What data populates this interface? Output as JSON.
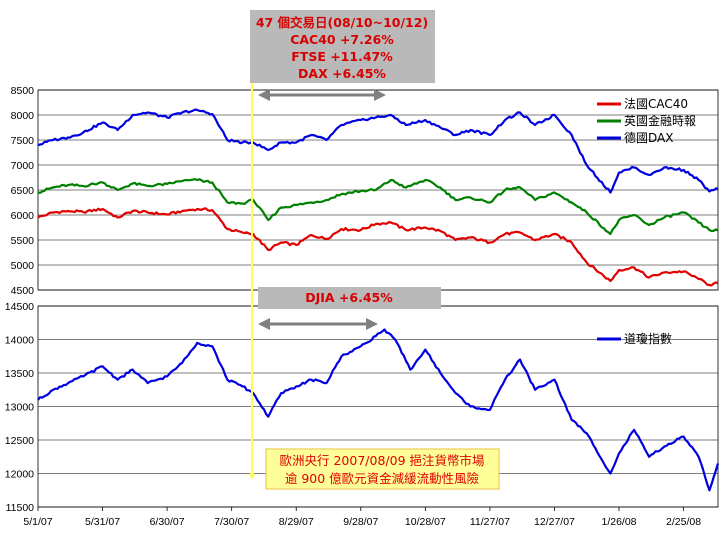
{
  "chart_data": [
    {
      "type": "line",
      "ylim": [
        4500,
        8500
      ],
      "yticks": [
        4500,
        5000,
        5500,
        6000,
        6500,
        7000,
        7500,
        8000,
        8500
      ],
      "grid": true,
      "legend_position": "top-right",
      "x_start": "5/1/07",
      "x_end": "3/12/08",
      "series": [
        {
          "name": "法國CAC40",
          "color": "#e00000",
          "points": [
            [
              "5/1/07",
              5950
            ],
            [
              "5/8/07",
              6050
            ],
            [
              "5/15/07",
              6080
            ],
            [
              "5/22/07",
              6060
            ],
            [
              "5/31/07",
              6120
            ],
            [
              "6/7/07",
              5950
            ],
            [
              "6/14/07",
              6080
            ],
            [
              "6/21/07",
              6050
            ],
            [
              "6/30/07",
              6010
            ],
            [
              "7/7/07",
              6080
            ],
            [
              "7/14/07",
              6120
            ],
            [
              "7/21/07",
              6100
            ],
            [
              "7/28/07",
              5720
            ],
            [
              "8/4/07",
              5650
            ],
            [
              "8/9/07",
              5620
            ],
            [
              "8/16/07",
              5300
            ],
            [
              "8/22/07",
              5450
            ],
            [
              "8/29/07",
              5400
            ],
            [
              "9/5/07",
              5600
            ],
            [
              "9/12/07",
              5520
            ],
            [
              "9/19/07",
              5720
            ],
            [
              "9/28/07",
              5700
            ],
            [
              "10/5/07",
              5820
            ],
            [
              "10/12/07",
              5850
            ],
            [
              "10/19/07",
              5700
            ],
            [
              "10/28/07",
              5750
            ],
            [
              "11/4/07",
              5680
            ],
            [
              "11/11/07",
              5500
            ],
            [
              "11/18/07",
              5550
            ],
            [
              "11/27/07",
              5450
            ],
            [
              "12/4/07",
              5620
            ],
            [
              "12/11/07",
              5650
            ],
            [
              "12/18/07",
              5500
            ],
            [
              "12/27/07",
              5620
            ],
            [
              "1/4/08",
              5450
            ],
            [
              "1/11/08",
              5050
            ],
            [
              "1/22/08",
              4680
            ],
            [
              "1/26/08",
              4900
            ],
            [
              "2/2/08",
              4950
            ],
            [
              "2/9/08",
              4750
            ],
            [
              "2/16/08",
              4850
            ],
            [
              "2/25/08",
              4870
            ],
            [
              "3/3/08",
              4720
            ],
            [
              "3/8/08",
              4600
            ],
            [
              "3/12/08",
              4640
            ]
          ]
        },
        {
          "name": "英國金融時報",
          "color": "#008000",
          "points": [
            [
              "5/1/07",
              6450
            ],
            [
              "5/8/07",
              6550
            ],
            [
              "5/15/07",
              6600
            ],
            [
              "5/22/07",
              6580
            ],
            [
              "5/31/07",
              6650
            ],
            [
              "6/7/07",
              6500
            ],
            [
              "6/14/07",
              6630
            ],
            [
              "6/21/07",
              6580
            ],
            [
              "6/30/07",
              6620
            ],
            [
              "7/7/07",
              6680
            ],
            [
              "7/14/07",
              6700
            ],
            [
              "7/21/07",
              6650
            ],
            [
              "7/28/07",
              6250
            ],
            [
              "8/4/07",
              6230
            ],
            [
              "8/9/07",
              6300
            ],
            [
              "8/16/07",
              5900
            ],
            [
              "8/22/07",
              6150
            ],
            [
              "8/29/07",
              6200
            ],
            [
              "9/5/07",
              6250
            ],
            [
              "9/12/07",
              6300
            ],
            [
              "9/19/07",
              6420
            ],
            [
              "9/28/07",
              6480
            ],
            [
              "10/5/07",
              6500
            ],
            [
              "10/12/07",
              6700
            ],
            [
              "10/19/07",
              6550
            ],
            [
              "10/28/07",
              6700
            ],
            [
              "11/4/07",
              6550
            ],
            [
              "11/11/07",
              6300
            ],
            [
              "11/18/07",
              6350
            ],
            [
              "11/27/07",
              6250
            ],
            [
              "12/4/07",
              6500
            ],
            [
              "12/11/07",
              6550
            ],
            [
              "12/18/07",
              6300
            ],
            [
              "12/27/07",
              6450
            ],
            [
              "1/4/08",
              6250
            ],
            [
              "1/11/08",
              6050
            ],
            [
              "1/22/08",
              5620
            ],
            [
              "1/26/08",
              5900
            ],
            [
              "2/2/08",
              6000
            ],
            [
              "2/9/08",
              5800
            ],
            [
              "2/16/08",
              5950
            ],
            [
              "2/25/08",
              6050
            ],
            [
              "3/3/08",
              5850
            ],
            [
              "3/8/08",
              5700
            ],
            [
              "3/12/08",
              5690
            ]
          ]
        },
        {
          "name": "德國DAX",
          "color": "#0000e0",
          "points": [
            [
              "5/1/07",
              7400
            ],
            [
              "5/8/07",
              7500
            ],
            [
              "5/15/07",
              7550
            ],
            [
              "5/22/07",
              7650
            ],
            [
              "5/31/07",
              7850
            ],
            [
              "6/7/07",
              7700
            ],
            [
              "6/14/07",
              8000
            ],
            [
              "6/21/07",
              8050
            ],
            [
              "6/30/07",
              7950
            ],
            [
              "7/7/07",
              8050
            ],
            [
              "7/14/07",
              8100
            ],
            [
              "7/21/07",
              8020
            ],
            [
              "7/28/07",
              7500
            ],
            [
              "8/4/07",
              7450
            ],
            [
              "8/9/07",
              7450
            ],
            [
              "8/16/07",
              7300
            ],
            [
              "8/22/07",
              7450
            ],
            [
              "8/29/07",
              7450
            ],
            [
              "9/5/07",
              7600
            ],
            [
              "9/12/07",
              7500
            ],
            [
              "9/19/07",
              7800
            ],
            [
              "9/28/07",
              7900
            ],
            [
              "10/5/07",
              7950
            ],
            [
              "10/12/07",
              8000
            ],
            [
              "10/19/07",
              7800
            ],
            [
              "10/28/07",
              7900
            ],
            [
              "11/4/07",
              7750
            ],
            [
              "11/11/07",
              7600
            ],
            [
              "11/18/07",
              7700
            ],
            [
              "11/27/07",
              7600
            ],
            [
              "12/4/07",
              7900
            ],
            [
              "12/11/07",
              8050
            ],
            [
              "12/18/07",
              7800
            ],
            [
              "12/27/07",
              8000
            ],
            [
              "1/4/08",
              7600
            ],
            [
              "1/11/08",
              7000
            ],
            [
              "1/22/08",
              6450
            ],
            [
              "1/26/08",
              6850
            ],
            [
              "2/2/08",
              6950
            ],
            [
              "2/9/08",
              6800
            ],
            [
              "2/16/08",
              6950
            ],
            [
              "2/25/08",
              6900
            ],
            [
              "3/3/08",
              6700
            ],
            [
              "3/8/08",
              6470
            ],
            [
              "3/12/08",
              6530
            ]
          ]
        }
      ]
    },
    {
      "type": "line",
      "ylim": [
        11500,
        14500
      ],
      "yticks": [
        11500,
        12000,
        12500,
        13000,
        13500,
        14000,
        14500
      ],
      "grid": true,
      "legend_position": "top-right",
      "x_start": "5/1/07",
      "x_end": "3/12/08",
      "xticks": [
        "5/1/07",
        "5/31/07",
        "6/30/07",
        "7/30/07",
        "8/29/07",
        "9/28/07",
        "10/28/07",
        "11/27/07",
        "12/27/07",
        "1/26/08",
        "2/25/08"
      ],
      "series": [
        {
          "name": "道瓊指數",
          "color": "#0000e0",
          "points": [
            [
              "5/1/07",
              13100
            ],
            [
              "5/8/07",
              13250
            ],
            [
              "5/15/07",
              13350
            ],
            [
              "5/22/07",
              13450
            ],
            [
              "5/31/07",
              13600
            ],
            [
              "6/7/07",
              13400
            ],
            [
              "6/14/07",
              13550
            ],
            [
              "6/21/07",
              13350
            ],
            [
              "6/30/07",
              13450
            ],
            [
              "7/7/07",
              13650
            ],
            [
              "7/14/07",
              13950
            ],
            [
              "7/21/07",
              13900
            ],
            [
              "7/28/07",
              13400
            ],
            [
              "8/4/07",
              13300
            ],
            [
              "8/9/07",
              13200
            ],
            [
              "8/16/07",
              12850
            ],
            [
              "8/22/07",
              13200
            ],
            [
              "8/29/07",
              13300
            ],
            [
              "9/5/07",
              13400
            ],
            [
              "9/12/07",
              13350
            ],
            [
              "9/19/07",
              13750
            ],
            [
              "9/28/07",
              13900
            ],
            [
              "10/5/07",
              14050
            ],
            [
              "10/9/07",
              14150
            ],
            [
              "10/14/07",
              14000
            ],
            [
              "10/21/07",
              13550
            ],
            [
              "10/28/07",
              13850
            ],
            [
              "11/4/07",
              13500
            ],
            [
              "11/11/07",
              13200
            ],
            [
              "11/18/07",
              13000
            ],
            [
              "11/27/07",
              12950
            ],
            [
              "12/4/07",
              13400
            ],
            [
              "12/11/07",
              13700
            ],
            [
              "12/18/07",
              13250
            ],
            [
              "12/27/07",
              13400
            ],
            [
              "1/4/08",
              12800
            ],
            [
              "1/11/08",
              12600
            ],
            [
              "1/22/08",
              12000
            ],
            [
              "1/26/08",
              12300
            ],
            [
              "2/2/08",
              12650
            ],
            [
              "2/9/08",
              12250
            ],
            [
              "2/16/08",
              12400
            ],
            [
              "2/25/08",
              12550
            ],
            [
              "3/3/08",
              12250
            ],
            [
              "3/8/08",
              11750
            ],
            [
              "3/12/08",
              12150
            ]
          ]
        }
      ]
    }
  ],
  "annotations": {
    "top_box": [
      "47 個交易日(08/10~10/12)",
      "CAC40 +7.26%",
      "FTSE +11.47%",
      "DAX +6.45%"
    ],
    "mid_box": "DJIA +6.45%",
    "note_box": [
      "歐洲央行 2007/08/09 挹注貨幣市場",
      "逾 900 億歐元資金減緩流動性風險"
    ],
    "colors": {
      "box_fill": "#b9b9b9",
      "box_text": "#d80000",
      "note_fill": "#ffff99",
      "note_border": "#e8c040",
      "marker_line": "#ffff55",
      "arrow": "#808080",
      "grid": "#000000"
    }
  }
}
